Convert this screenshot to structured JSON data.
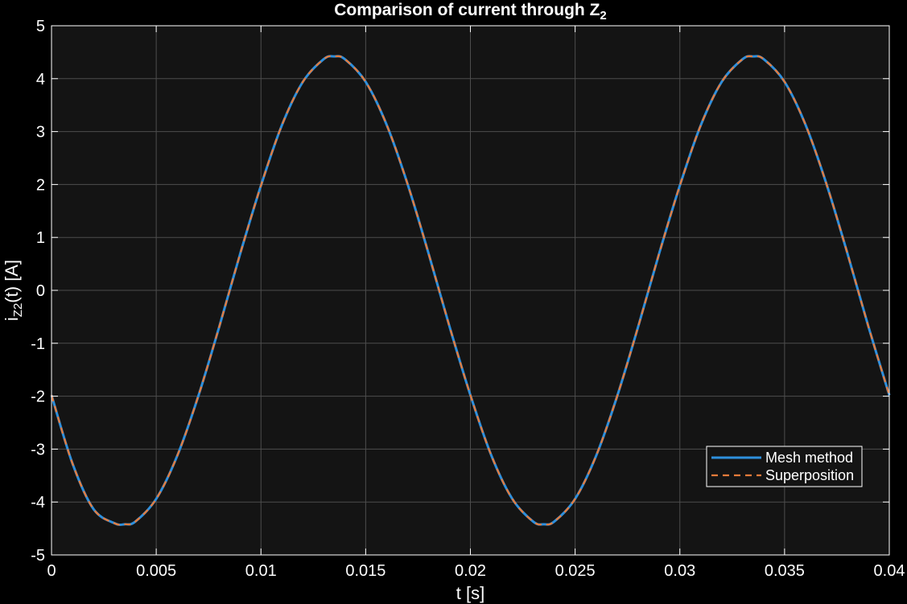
{
  "chart_data": {
    "type": "line",
    "title": "Comparison of current through Z",
    "title_subscript": "2",
    "xlabel": "t [s]",
    "ylabel": {
      "base": "i",
      "subscript": "Z2",
      "suffix": "(t)  [A]"
    },
    "xlim": [
      0,
      0.04
    ],
    "ylim": [
      -5,
      5
    ],
    "xticks": [
      0,
      0.005,
      0.01,
      0.015,
      0.02,
      0.025,
      0.03,
      0.035,
      0.04
    ],
    "xtick_labels": [
      "0",
      "0.005",
      "0.01",
      "0.015",
      "0.02",
      "0.025",
      "0.03",
      "0.035",
      "0.04"
    ],
    "yticks": [
      -5,
      -4,
      -3,
      -2,
      -1,
      0,
      1,
      2,
      3,
      4,
      5
    ],
    "ytick_labels": [
      "-5",
      "-4",
      "-3",
      "-2",
      "-1",
      "0",
      "1",
      "2",
      "3",
      "4",
      "5"
    ],
    "grid": true,
    "legend_position": "lower-right",
    "background": "#141414",
    "figure_background": "#000000",
    "grid_color": "#4d4d4d",
    "series": [
      {
        "name": "Mesh method",
        "color": "#2e8fdc",
        "style": "solid",
        "x": [
          0,
          0.001,
          0.002,
          0.003,
          0.0035,
          0.004,
          0.005,
          0.006,
          0.007,
          0.008,
          0.009,
          0.01,
          0.011,
          0.012,
          0.013,
          0.0135,
          0.014,
          0.015,
          0.016,
          0.017,
          0.018,
          0.019,
          0.02,
          0.021,
          0.022,
          0.023,
          0.0235,
          0.024,
          0.025,
          0.026,
          0.027,
          0.028,
          0.029,
          0.03,
          0.031,
          0.032,
          0.033,
          0.0335,
          0.034,
          0.035,
          0.036,
          0.037,
          0.038,
          0.039,
          0.04
        ],
        "y": [
          -1.98,
          -3.27,
          -4.13,
          -4.4,
          -4.42,
          -4.37,
          -3.94,
          -3.13,
          -2.01,
          -0.7,
          0.68,
          1.98,
          3.12,
          3.94,
          4.37,
          4.42,
          4.37,
          3.94,
          3.13,
          2.01,
          0.7,
          -0.68,
          -1.98,
          -3.12,
          -3.94,
          -4.37,
          -4.42,
          -4.37,
          -3.94,
          -3.13,
          -2.01,
          -0.7,
          0.68,
          1.98,
          3.12,
          3.94,
          4.37,
          4.42,
          4.37,
          3.94,
          3.13,
          2.01,
          0.7,
          -0.68,
          -1.98
        ]
      },
      {
        "name": "Superposition",
        "color": "#e87b3a",
        "style": "dashed",
        "x": [
          0,
          0.001,
          0.002,
          0.003,
          0.0035,
          0.004,
          0.005,
          0.006,
          0.007,
          0.008,
          0.009,
          0.01,
          0.011,
          0.012,
          0.013,
          0.0135,
          0.014,
          0.015,
          0.016,
          0.017,
          0.018,
          0.019,
          0.02,
          0.021,
          0.022,
          0.023,
          0.0235,
          0.024,
          0.025,
          0.026,
          0.027,
          0.028,
          0.029,
          0.03,
          0.031,
          0.032,
          0.033,
          0.0335,
          0.034,
          0.035,
          0.036,
          0.037,
          0.038,
          0.039,
          0.04
        ],
        "y": [
          -1.98,
          -3.27,
          -4.13,
          -4.4,
          -4.42,
          -4.37,
          -3.94,
          -3.13,
          -2.01,
          -0.7,
          0.68,
          1.98,
          3.12,
          3.94,
          4.37,
          4.42,
          4.37,
          3.94,
          3.13,
          2.01,
          0.7,
          -0.68,
          -1.98,
          -3.12,
          -3.94,
          -4.37,
          -4.42,
          -4.37,
          -3.94,
          -3.13,
          -2.01,
          -0.7,
          0.68,
          1.98,
          3.12,
          3.94,
          4.37,
          4.42,
          4.37,
          3.94,
          3.13,
          2.01,
          0.7,
          -0.68,
          -1.98
        ]
      }
    ]
  }
}
